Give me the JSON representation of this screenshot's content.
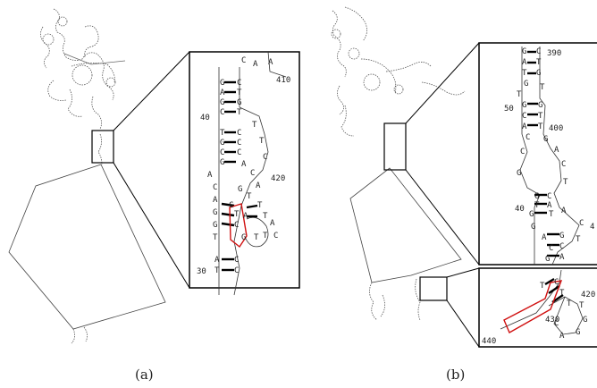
{
  "panel_a": {
    "caption": "(a)",
    "positions": [
      "410",
      "40",
      "420",
      "30"
    ],
    "nucleotides": [
      "C",
      "A",
      "A",
      "G",
      "C",
      "A",
      "T",
      "G",
      "G",
      "C",
      "T",
      "T",
      "T",
      "C",
      "T",
      "C",
      "G",
      "C",
      "C",
      "C",
      "A",
      "G",
      "C",
      "A",
      "A",
      "G",
      "C",
      "T",
      "A",
      "C",
      "G",
      "T",
      "A",
      "T",
      "T",
      "A",
      "G",
      "C",
      "C",
      "T",
      "G",
      "T",
      "T",
      "A",
      "C",
      "T",
      "C"
    ]
  },
  "panel_b": {
    "caption": "(b)",
    "positions": [
      "390",
      "50",
      "400",
      "40",
      "4",
      "420",
      "430",
      "440"
    ],
    "nucleotides": [
      "G",
      "C",
      "A",
      "T",
      "T",
      "G",
      "G",
      "T",
      "T",
      "G",
      "G",
      "C",
      "T",
      "A",
      "T",
      "C",
      "G",
      "C",
      "A",
      "G",
      "C",
      "T",
      "G",
      "C",
      "T",
      "A",
      "G",
      "T",
      "A",
      "G",
      "C",
      "A",
      "G",
      "T",
      "C",
      "C",
      "G",
      "A",
      "C",
      "T",
      "T",
      "T",
      "G",
      "G",
      "A",
      "C",
      "T"
    ]
  }
}
